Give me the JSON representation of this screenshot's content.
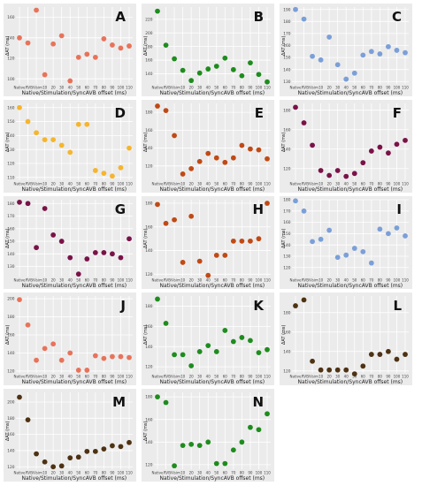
{
  "figure": {
    "ylabel": "ΔAT (ms)",
    "xlabel": "Native/Stimulation/SyncAVB offset (ms)",
    "xtick_labels": [
      "Native",
      "RV",
      "BiVsim",
      "10",
      "20",
      "30",
      "40",
      "50",
      "60",
      "70",
      "80",
      "90",
      "100",
      "110"
    ]
  },
  "chart_data": [
    {
      "panel": "A",
      "type": "scatter",
      "color": "#e8735a",
      "ylim": [
        95,
        170
      ],
      "yticks": [
        100,
        120,
        140,
        160
      ],
      "values": [
        140,
        135,
        167,
        104,
        134,
        142,
        98,
        121,
        124,
        121,
        139,
        133,
        130,
        132
      ]
    },
    {
      "panel": "B",
      "type": "scatter",
      "color": "#1e8c1e",
      "ylim": [
        125,
        238
      ],
      "yticks": [
        140,
        160,
        180,
        200,
        220
      ],
      "values": [
        232,
        182,
        162,
        145,
        130,
        141,
        147,
        151,
        163,
        146,
        137,
        156,
        139,
        128
      ]
    },
    {
      "panel": "C",
      "type": "scatter",
      "color": "#7b9fd8",
      "ylim": [
        128,
        192
      ],
      "yticks": [
        130,
        140,
        150,
        160,
        170,
        180,
        190
      ],
      "values": [
        190,
        182,
        151,
        148,
        167,
        144,
        132,
        137,
        152,
        155,
        153,
        159,
        156,
        154
      ]
    },
    {
      "panel": "D",
      "type": "scatter",
      "color": "#f5b52e",
      "ylim": [
        108,
        163
      ],
      "yticks": [
        110,
        120,
        130,
        140,
        150,
        160
      ],
      "values": [
        160,
        150,
        142,
        137,
        137,
        133,
        128,
        148,
        148,
        115,
        113,
        111,
        117,
        131
      ]
    },
    {
      "panel": "E",
      "type": "scatter",
      "color": "#c04a15",
      "ylim": [
        104,
        190
      ],
      "yticks": [
        120,
        140,
        160,
        180
      ],
      "values": [
        187,
        182,
        154,
        111,
        117,
        125,
        134,
        129,
        124,
        129,
        143,
        139,
        138,
        128
      ]
    },
    {
      "panel": "F",
      "type": "scatter",
      "color": "#7a1248",
      "ylim": [
        108,
        187
      ],
      "yticks": [
        120,
        140,
        160,
        180
      ],
      "values": [
        183,
        167,
        144,
        118,
        113,
        118,
        112,
        115,
        126,
        138,
        142,
        136,
        145,
        149
      ]
    },
    {
      "panel": "G",
      "type": "scatter",
      "color": "#7a1248",
      "ylim": [
        122,
        183
      ],
      "yticks": [
        130,
        140,
        150,
        160,
        170,
        180
      ],
      "values": [
        181,
        180,
        145,
        176,
        155,
        150,
        137,
        124,
        136,
        141,
        141,
        140,
        137,
        152
      ]
    },
    {
      "panel": "H",
      "type": "scatter",
      "color": "#c04a15",
      "ylim": [
        118,
        183
      ],
      "yticks": [
        120,
        140,
        160,
        180
      ],
      "values": [
        179,
        163,
        166,
        130,
        169,
        131,
        119,
        136,
        136,
        148,
        148,
        148,
        150,
        180
      ]
    },
    {
      "panel": "I",
      "type": "scatter",
      "color": "#7b9fd8",
      "ylim": [
        112,
        180
      ],
      "yticks": [
        120,
        130,
        140,
        150,
        160,
        170,
        180
      ],
      "values": [
        179,
        170,
        143,
        145,
        153,
        129,
        131,
        137,
        134,
        124,
        154,
        150,
        155,
        148
      ]
    },
    {
      "panel": "J",
      "type": "scatter",
      "color": "#e8735a",
      "ylim": [
        118,
        203
      ],
      "yticks": [
        120,
        140,
        160,
        180,
        200
      ],
      "values": [
        199,
        171,
        132,
        145,
        150,
        132,
        140,
        121,
        121,
        137,
        134,
        136,
        136,
        135
      ]
    },
    {
      "panel": "K",
      "type": "scatter",
      "color": "#1e8c1e",
      "ylim": [
        114,
        190
      ],
      "yticks": [
        120,
        140,
        160,
        180
      ],
      "values": [
        187,
        163,
        132,
        132,
        121,
        135,
        141,
        135,
        156,
        145,
        149,
        146,
        134,
        137
      ]
    },
    {
      "panel": "L",
      "type": "scatter",
      "color": "#4e3213",
      "ylim": [
        118,
        197
      ],
      "yticks": [
        120,
        140,
        160,
        180
      ],
      "values": [
        187,
        193,
        130,
        121,
        121,
        121,
        121,
        117,
        125,
        137,
        137,
        140,
        132,
        137
      ]
    },
    {
      "panel": "M",
      "type": "scatter",
      "color": "#4e3213",
      "ylim": [
        117,
        212
      ],
      "yticks": [
        120,
        140,
        160,
        180,
        200
      ],
      "values": [
        206,
        178,
        136,
        126,
        120,
        121,
        131,
        132,
        139,
        139,
        142,
        146,
        145,
        150
      ]
    },
    {
      "panel": "N",
      "type": "scatter",
      "color": "#1e8c1e",
      "ylim": [
        116,
        184
      ],
      "yticks": [
        120,
        140,
        160,
        180
      ],
      "values": [
        180,
        175,
        119,
        137,
        138,
        137,
        140,
        121,
        121,
        133,
        140,
        153,
        151,
        165
      ]
    }
  ]
}
